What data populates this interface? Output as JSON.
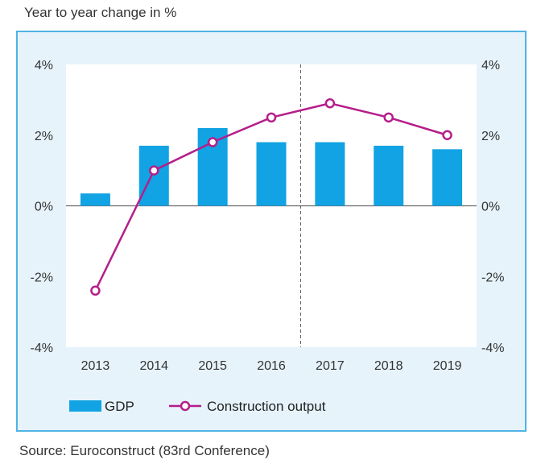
{
  "header": {
    "label": "Year to year change in %"
  },
  "footer": {
    "source": "Source: Euroconstruct (83rd Conference)"
  },
  "colors": {
    "bar": "#11a3e3",
    "line": "#b51e8a",
    "panel_bg": "#e6f3fb",
    "panel_border": "#4fb3e3"
  },
  "chart_data": {
    "type": "bar",
    "categories": [
      "2013",
      "2014",
      "2015",
      "2016",
      "2017",
      "2018",
      "2019"
    ],
    "series": [
      {
        "name": "GDP",
        "type": "bar",
        "axis": "left",
        "values": [
          0.35,
          1.7,
          2.2,
          1.8,
          1.8,
          1.7,
          1.6
        ]
      },
      {
        "name": "Construction output",
        "type": "line",
        "axis": "right",
        "values": [
          -2.4,
          1.0,
          1.8,
          2.5,
          2.9,
          2.5,
          2.0
        ]
      }
    ],
    "ylim": [
      -4,
      4
    ],
    "y_ticks": [
      "4%",
      "2%",
      "0%",
      "-2%",
      "-4%"
    ],
    "y_tick_values": [
      4,
      2,
      0,
      -2,
      -4
    ],
    "y2_ticks": [
      "4%",
      "2%",
      "0%",
      "-2%",
      "-4%"
    ],
    "divider_between": [
      "2016",
      "2017"
    ],
    "legend_position": "bottom-left",
    "grid": false
  }
}
